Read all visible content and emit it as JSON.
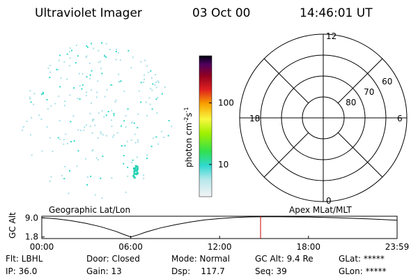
{
  "header": {
    "instrument": "Ultraviolet Imager",
    "date": "03 Oct 00",
    "time": "14:46:01 UT"
  },
  "colorbar": {
    "label": "photon cm",
    "exp1": "-2",
    "unit2": "s",
    "exp2": "-1",
    "lim": [
      3,
      580
    ],
    "ticks": [
      10,
      100
    ],
    "log": true
  },
  "polar": {
    "mlt_ticks": [
      12,
      6,
      0,
      18
    ],
    "lat_lim": [
      50,
      90
    ],
    "lat_ticks": [
      60,
      70,
      80
    ]
  },
  "altitude": {
    "ylabel": "GC Alt",
    "left_title": "Geographic Lat/Lon",
    "right_title": "Apex MLat/MLT",
    "xlim": [
      0,
      23.983
    ],
    "ylim": [
      1.2,
      9.6
    ],
    "xticks": [
      {
        "value": 0,
        "label": "00:00"
      },
      {
        "value": 6,
        "label": "06:00"
      },
      {
        "value": 12,
        "label": "12:00"
      },
      {
        "value": 18,
        "label": "18:00"
      },
      {
        "value": 23.983,
        "label": "23:59"
      }
    ],
    "yticks": [
      {
        "value": 9.0,
        "label": "9.0"
      },
      1.8
    ],
    "x": [
      0,
      1,
      2,
      3,
      4,
      5,
      5.5,
      6,
      6.5,
      7,
      8,
      9,
      10,
      11,
      12,
      13,
      14,
      15,
      16,
      18,
      20,
      22,
      23.983
    ],
    "values": [
      9.0,
      8.6,
      7.9,
      6.9,
      5.6,
      3.9,
      2.8,
      1.8,
      2.6,
      3.6,
      5.2,
      6.4,
      7.4,
      8.2,
      8.7,
      9.1,
      9.35,
      9.4,
      9.4,
      9.3,
      9.0,
      8.6,
      8.1
    ],
    "current_time": 14.767,
    "line_color": "#000000",
    "marker_color": "#cc0000"
  },
  "footer": [
    [
      "Flt: LBHL",
      "IP: 36.0"
    ],
    [
      "Door: Closed",
      "Gain: 13"
    ],
    [
      "Mode: Normal",
      "Dsp:    117.7"
    ],
    [
      "GC Alt: 9.4 Re",
      "Seq: 39"
    ],
    [
      "GLat: *****",
      "GLon: *****"
    ]
  ]
}
